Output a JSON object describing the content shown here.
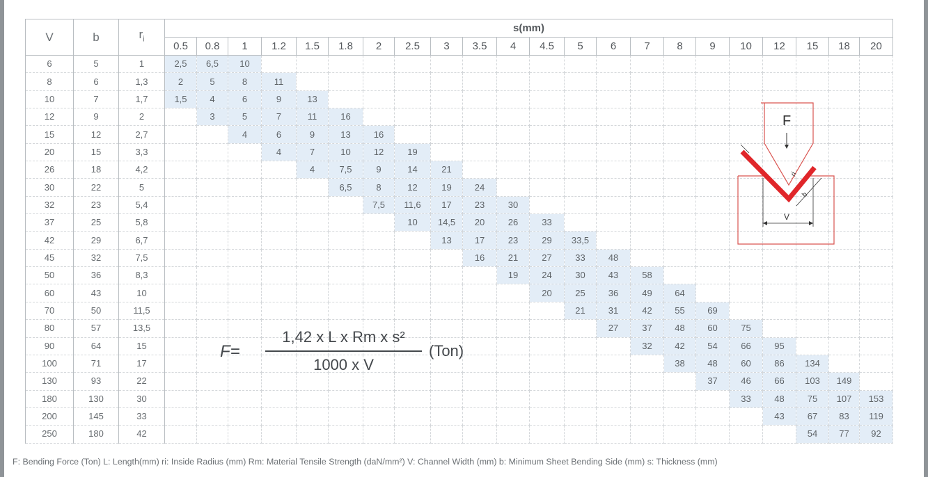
{
  "table": {
    "col_headers": [
      "V",
      "b",
      "ri"
    ],
    "ri_symbol": "r",
    "ri_subscript": "i",
    "thickness_header": "s(mm)",
    "thickness": [
      "0.5",
      "0.8",
      "1",
      "1.2",
      "1.5",
      "1.8",
      "2",
      "2.5",
      "3",
      "3.5",
      "4",
      "4.5",
      "5",
      "6",
      "7",
      "8",
      "9",
      "10",
      "12",
      "15",
      "18",
      "20"
    ],
    "rows": [
      {
        "V": "6",
        "b": "5",
        "ri": "1",
        "start": 0,
        "values": [
          "2,5",
          "6,5",
          "10"
        ]
      },
      {
        "V": "8",
        "b": "6",
        "ri": "1,3",
        "start": 0,
        "values": [
          "2",
          "5",
          "8",
          "11"
        ]
      },
      {
        "V": "10",
        "b": "7",
        "ri": "1,7",
        "start": 0,
        "values": [
          "1,5",
          "4",
          "6",
          "9",
          "13"
        ]
      },
      {
        "V": "12",
        "b": "9",
        "ri": "2",
        "start": 1,
        "values": [
          "3",
          "5",
          "7",
          "11",
          "16"
        ]
      },
      {
        "V": "15",
        "b": "12",
        "ri": "2,7",
        "start": 2,
        "values": [
          "4",
          "6",
          "9",
          "13",
          "16"
        ]
      },
      {
        "V": "20",
        "b": "15",
        "ri": "3,3",
        "start": 3,
        "values": [
          "4",
          "7",
          "10",
          "12",
          "19"
        ]
      },
      {
        "V": "26",
        "b": "18",
        "ri": "4,2",
        "start": 4,
        "values": [
          "4",
          "7,5",
          "9",
          "14",
          "21"
        ]
      },
      {
        "V": "30",
        "b": "22",
        "ri": "5",
        "start": 5,
        "values": [
          "6,5",
          "8",
          "12",
          "19",
          "24"
        ]
      },
      {
        "V": "32",
        "b": "23",
        "ri": "5,4",
        "start": 6,
        "values": [
          "7,5",
          "11,6",
          "17",
          "23",
          "30"
        ]
      },
      {
        "V": "37",
        "b": "25",
        "ri": "5,8",
        "start": 7,
        "values": [
          "10",
          "14,5",
          "20",
          "26",
          "33"
        ]
      },
      {
        "V": "42",
        "b": "29",
        "ri": "6,7",
        "start": 8,
        "values": [
          "13",
          "17",
          "23",
          "29",
          "33,5"
        ]
      },
      {
        "V": "45",
        "b": "32",
        "ri": "7,5",
        "start": 9,
        "values": [
          "16",
          "21",
          "27",
          "33",
          "48"
        ]
      },
      {
        "V": "50",
        "b": "36",
        "ri": "8,3",
        "start": 10,
        "values": [
          "19",
          "24",
          "30",
          "43",
          "58"
        ]
      },
      {
        "V": "60",
        "b": "43",
        "ri": "10",
        "start": 11,
        "values": [
          "20",
          "25",
          "36",
          "49",
          "64"
        ]
      },
      {
        "V": "70",
        "b": "50",
        "ri": "11,5",
        "start": 12,
        "values": [
          "21",
          "31",
          "42",
          "55",
          "69"
        ]
      },
      {
        "V": "80",
        "b": "57",
        "ri": "13,5",
        "start": 13,
        "values": [
          "27",
          "37",
          "48",
          "60",
          "75"
        ]
      },
      {
        "V": "90",
        "b": "64",
        "ri": "15",
        "start": 14,
        "values": [
          "32",
          "42",
          "54",
          "66",
          "95"
        ]
      },
      {
        "V": "100",
        "b": "71",
        "ri": "17",
        "start": 15,
        "values": [
          "38",
          "48",
          "60",
          "86",
          "134"
        ]
      },
      {
        "V": "130",
        "b": "93",
        "ri": "22",
        "start": 16,
        "values": [
          "37",
          "46",
          "66",
          "103",
          "149"
        ]
      },
      {
        "V": "180",
        "b": "130",
        "ri": "30",
        "start": 17,
        "values": [
          "33",
          "48",
          "75",
          "107",
          "153"
        ]
      },
      {
        "V": "200",
        "b": "145",
        "ri": "33",
        "start": 18,
        "values": [
          "43",
          "67",
          "83",
          "119"
        ]
      },
      {
        "V": "250",
        "b": "180",
        "ri": "42",
        "start": 19,
        "values": [
          "54",
          "77",
          "92"
        ]
      }
    ]
  },
  "formula": {
    "lhs": "F=",
    "numerator": "1,42 x L x Rm x s²",
    "denominator": "1000 x V",
    "unit": "(Ton)"
  },
  "diagram": {
    "force_label": "F",
    "s_label": "s",
    "ri_label": "ri",
    "b_label": "b",
    "v_label": "V",
    "red_color": "#e0262a",
    "outline_color": "#d9534f"
  },
  "legend": "F: Bending Force (Ton)  L: Length(mm)  ri: Inside Radius (mm)  Rm: Material Tensile Strength (daN/mm²)  V: Channel Width (mm)  b: Minimum Sheet Bending Side (mm)  s: Thickness (mm)",
  "colors": {
    "highlight": "#e3edf7",
    "background": "#8f9498"
  }
}
